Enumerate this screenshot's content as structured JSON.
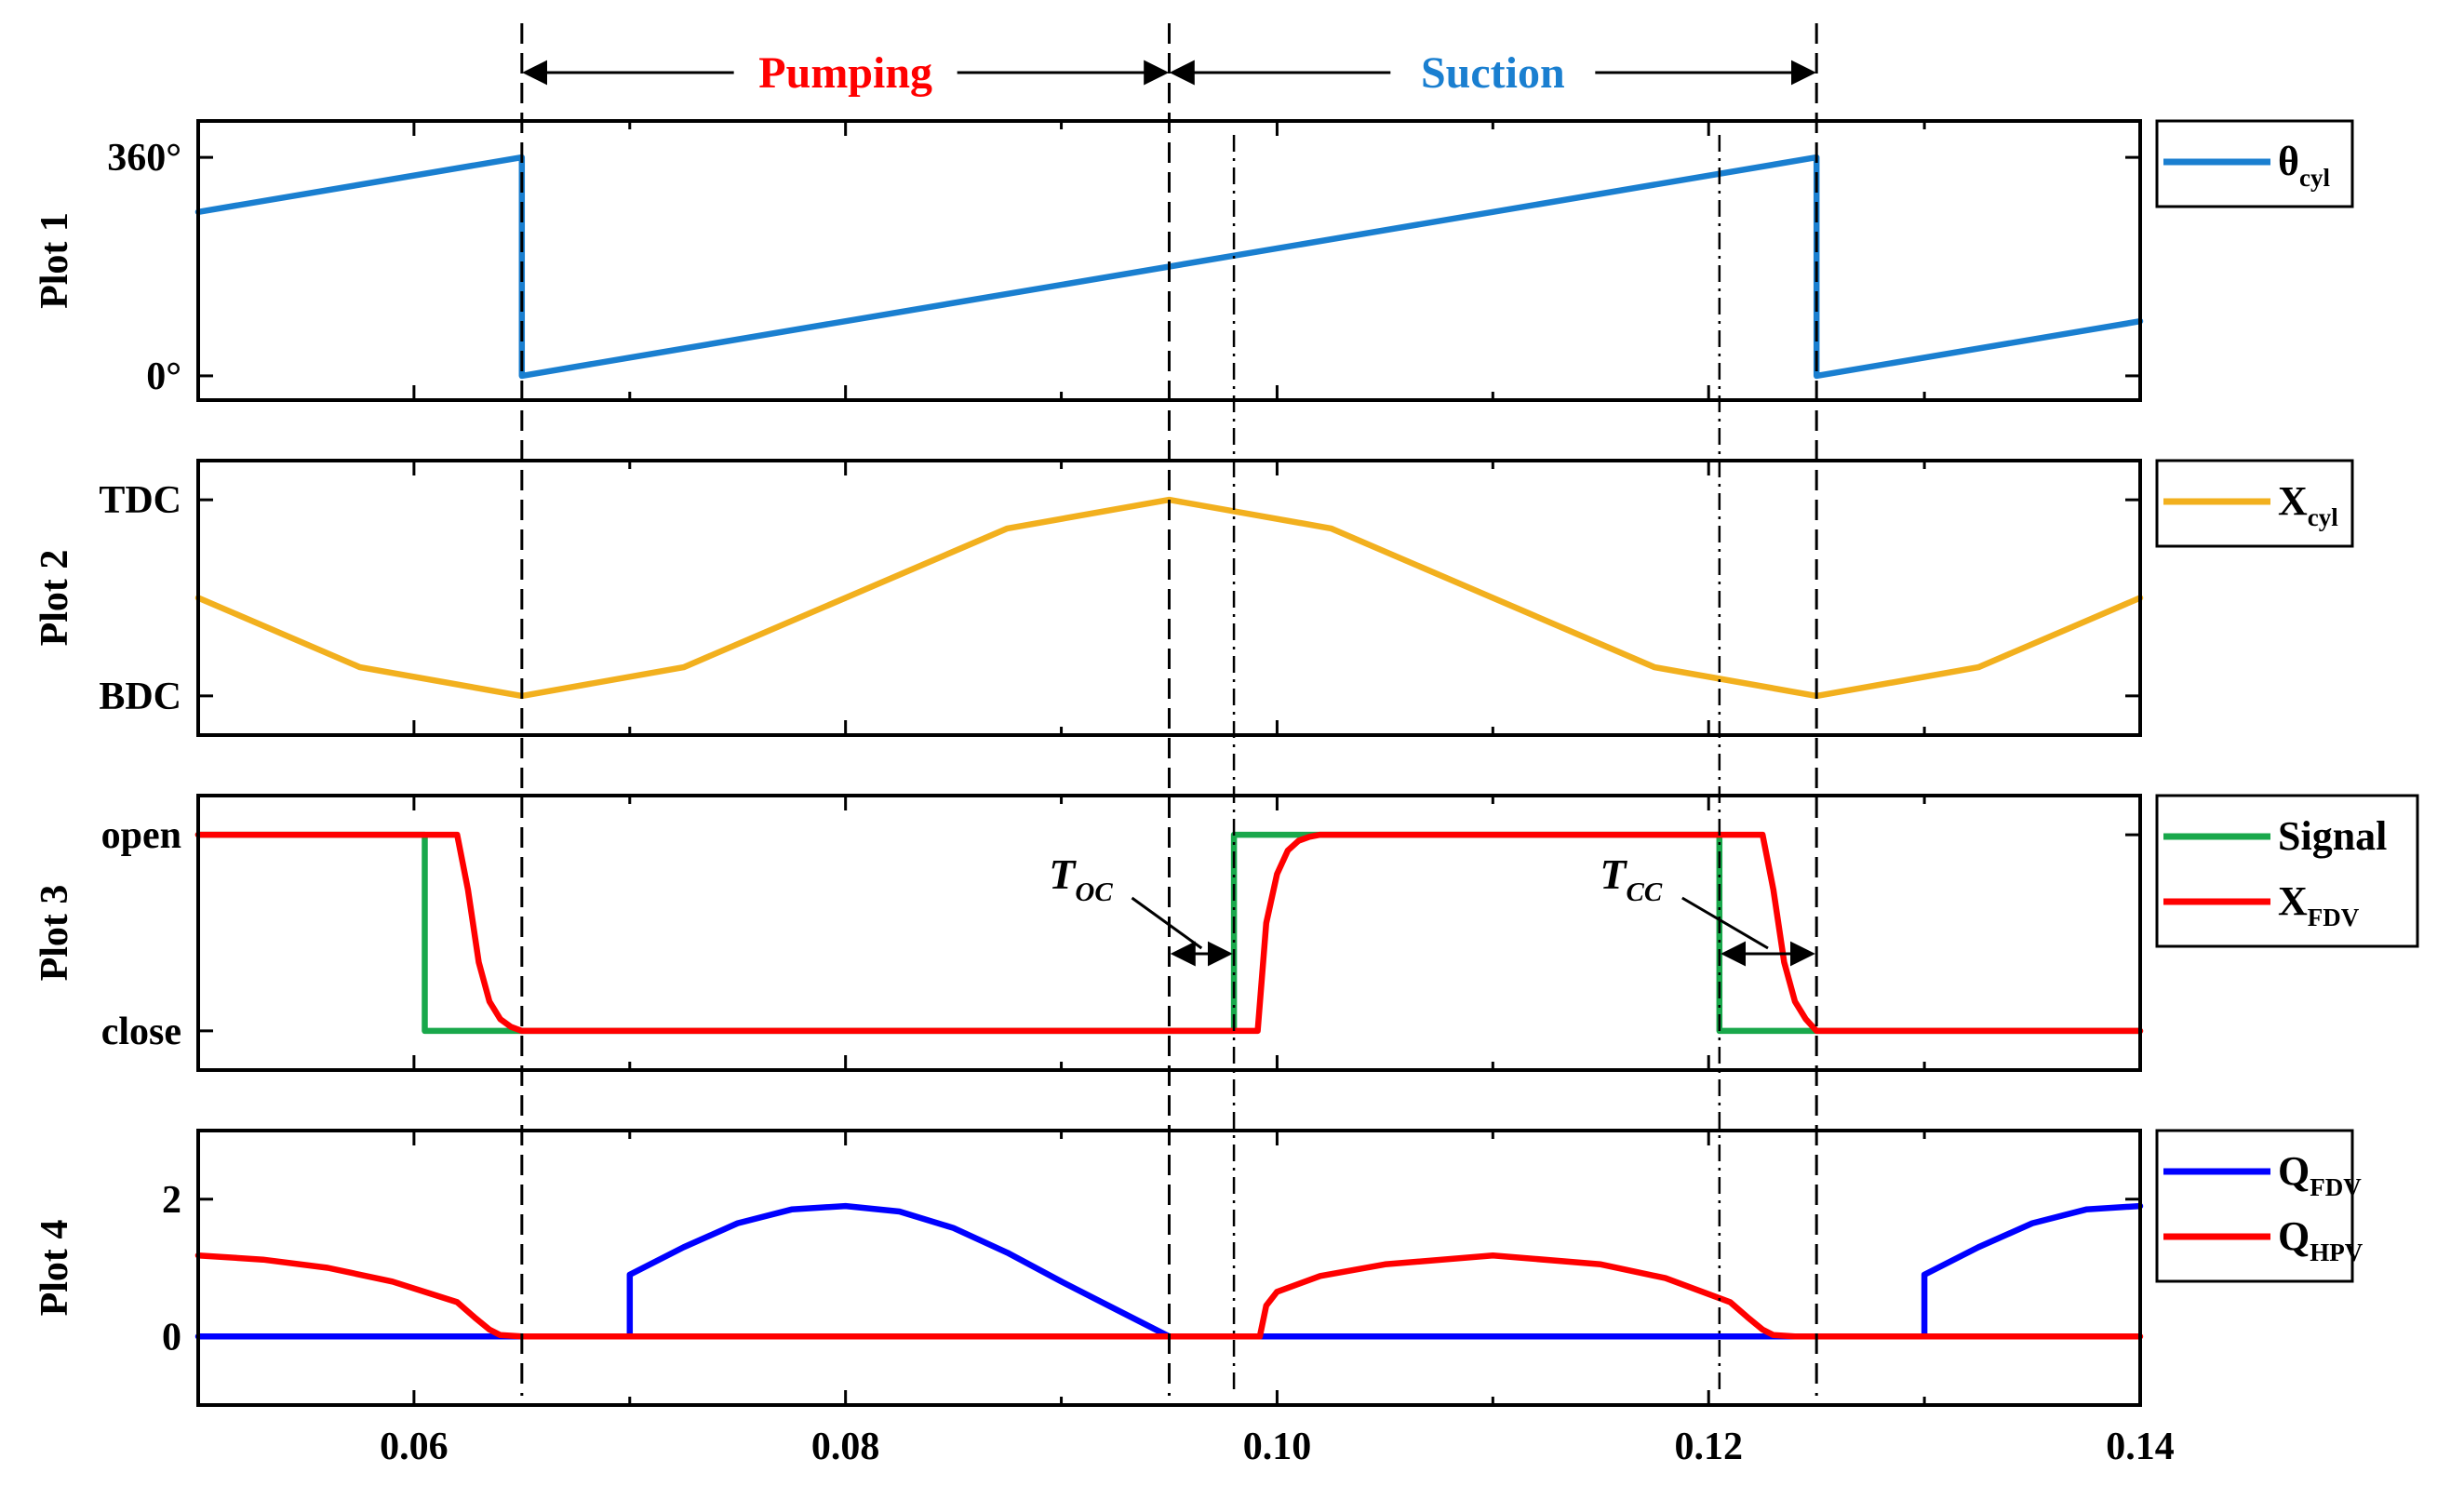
{
  "chart_data": {
    "type": "line",
    "x_axis": {
      "xlim": [
        0.05,
        0.14
      ],
      "ticks": [
        0.06,
        0.08,
        0.1,
        0.12,
        0.14
      ],
      "tick_labels": [
        "0.06",
        "0.08",
        "0.10",
        "0.12",
        "0.14"
      ]
    },
    "phases": [
      {
        "name": "Pumping",
        "x_start": 0.065,
        "x_end": 0.095,
        "color": "#ff0000"
      },
      {
        "name": "Suction",
        "x_start": 0.095,
        "x_end": 0.125,
        "color": "#1a7fd0"
      }
    ],
    "guide_lines": {
      "dashed": [
        0.065,
        0.095,
        0.125
      ],
      "dash_dot": [
        0.098,
        0.1205
      ]
    },
    "annotations": [
      {
        "label": "T",
        "subscript": "OC",
        "x_start": 0.095,
        "x_end": 0.098
      },
      {
        "label": "T",
        "subscript": "CC",
        "x_start": 0.1205,
        "x_end": 0.125
      }
    ],
    "plots": [
      {
        "ylabel": "Plot 1",
        "ylim": [
          -40,
          420
        ],
        "yticks": [
          0,
          360
        ],
        "ytick_labels": [
          "0°",
          "360°"
        ],
        "series": [
          {
            "name": "θ",
            "subscript": "cyl",
            "color": "#1a7fd0",
            "x": [
              0.05,
              0.065,
              0.065,
              0.125,
              0.125,
              0.14
            ],
            "y": [
              270,
              360,
              0,
              360,
              0,
              90
            ]
          }
        ]
      },
      {
        "ylabel": "Plot 2",
        "ylim": [
          -0.2,
          1.2
        ],
        "yticks": [
          0,
          1
        ],
        "ytick_labels": [
          "BDC",
          "TDC"
        ],
        "series": [
          {
            "name": "X",
            "subscript": "cyl",
            "color": "#f2b01e",
            "x": [
              0.05,
              0.0575,
              0.065,
              0.0725,
              0.08,
              0.0875,
              0.095,
              0.1025,
              0.11,
              0.1175,
              0.125,
              0.1325,
              0.14
            ],
            "y": [
              0.5,
              0.146,
              0.0,
              0.146,
              0.5,
              0.854,
              1.0,
              0.854,
              0.5,
              0.146,
              0.0,
              0.146,
              0.5
            ]
          }
        ]
      },
      {
        "ylabel": "Plot 3",
        "ylim": [
          -0.2,
          1.2
        ],
        "yticks": [
          0,
          1
        ],
        "ytick_labels": [
          "close",
          "open"
        ],
        "series": [
          {
            "name": "Signal",
            "subscript": "",
            "color": "#19a84b",
            "x": [
              0.05,
              0.0605,
              0.0605,
              0.098,
              0.098,
              0.1205,
              0.1205,
              0.14
            ],
            "y": [
              1,
              1,
              0,
              0,
              1,
              1,
              0,
              0
            ]
          },
          {
            "name": "X",
            "subscript": "FDV",
            "color": "#ff0000",
            "x": [
              0.05,
              0.062,
              0.0625,
              0.063,
              0.0635,
              0.064,
              0.0645,
              0.065,
              0.0991,
              0.0995,
              0.1,
              0.1005,
              0.101,
              0.1015,
              0.102,
              0.1225,
              0.123,
              0.1235,
              0.124,
              0.1245,
              0.125,
              0.14
            ],
            "y": [
              1,
              1,
              0.72,
              0.35,
              0.15,
              0.06,
              0.02,
              0,
              0,
              0.55,
              0.8,
              0.92,
              0.97,
              0.99,
              1,
              1,
              0.72,
              0.35,
              0.15,
              0.06,
              0,
              0
            ]
          }
        ]
      },
      {
        "ylabel": "Plot 4",
        "ylim": [
          -1,
          3
        ],
        "yticks": [
          0,
          2
        ],
        "ytick_labels": [
          "0",
          "2"
        ],
        "series": [
          {
            "name": "Q",
            "subscript": "FDV",
            "color": "#0000ff",
            "x": [
              0.05,
              0.07,
              0.07,
              0.0725,
              0.075,
              0.0775,
              0.08,
              0.0825,
              0.085,
              0.0875,
              0.09,
              0.0925,
              0.095,
              0.13,
              0.13,
              0.1325,
              0.135,
              0.1375,
              0.14
            ],
            "y": [
              0,
              0,
              0.9,
              1.3,
              1.65,
              1.85,
              1.9,
              1.82,
              1.58,
              1.22,
              0.8,
              0.4,
              0,
              0,
              0.9,
              1.3,
              1.65,
              1.85,
              1.9
            ]
          },
          {
            "name": "Q",
            "subscript": "HPV",
            "color": "#ff0000",
            "x": [
              0.05,
              0.053,
              0.056,
              0.059,
              0.062,
              0.0628,
              0.0635,
              0.064,
              0.065,
              0.0992,
              0.0995,
              0.1,
              0.102,
              0.105,
              0.11,
              0.115,
              0.118,
              0.121,
              0.1218,
              0.1225,
              0.123,
              0.124,
              0.14
            ],
            "y": [
              1.18,
              1.12,
              1.0,
              0.8,
              0.5,
              0.28,
              0.1,
              0.02,
              0,
              0,
              0.45,
              0.65,
              0.88,
              1.05,
              1.18,
              1.05,
              0.85,
              0.5,
              0.28,
              0.1,
              0.02,
              0,
              0
            ]
          }
        ]
      }
    ]
  }
}
